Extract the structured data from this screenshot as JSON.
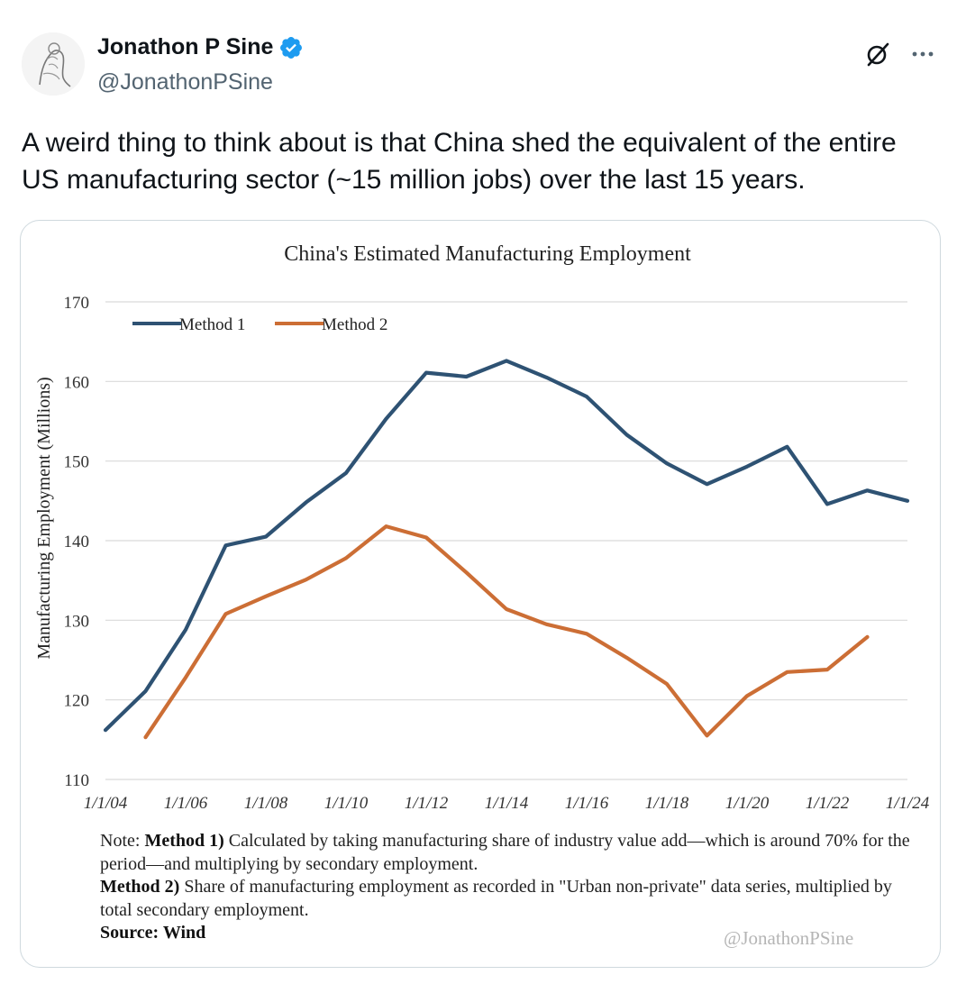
{
  "tweet": {
    "author_name": "Jonathon P Sine",
    "author_handle": "@JonathonPSine",
    "text": "A weird thing to think about is that China shed the equivalent of the entire US manufacturing sector (~15 million jobs) over the last 15 years.",
    "icons": {
      "verified": "verified-badge-icon",
      "grok": "grok-icon",
      "more": "more-options-icon",
      "avatar": "avatar"
    }
  },
  "chart_note": {
    "note_prefix": "Note: ",
    "method1_label": "Method 1)",
    "method1_text": " Calculated by taking manufacturing share of industry value add—which is around 70% for the period—and multiplying by secondary employment.",
    "method2_label": "Method 2)",
    "method2_text": " Share of manufacturing employment as recorded in \"Urban non-private\" data series, multiplied by total secondary employment.",
    "source_label": "Source: Wind",
    "watermark": "@JonathonPSine"
  },
  "chart_data": {
    "type": "line",
    "title": "China's Estimated Manufacturing Employment",
    "xlabel": "",
    "ylabel": "Manufacturing Employment (Millions)",
    "ylim": [
      110,
      170
    ],
    "yticks": [
      110,
      120,
      130,
      140,
      150,
      160,
      170
    ],
    "xticks": [
      "1/1/04",
      "1/1/06",
      "1/1/08",
      "1/1/10",
      "1/1/12",
      "1/1/14",
      "1/1/16",
      "1/1/18",
      "1/1/20",
      "1/1/22",
      "1/1/24"
    ],
    "grid": true,
    "legend_placement": "top-left",
    "series": [
      {
        "name": "Method 1",
        "color": "#2e5273",
        "x": [
          "2004",
          "2005",
          "2006",
          "2007",
          "2008",
          "2009",
          "2010",
          "2011",
          "2012",
          "2013",
          "2014",
          "2015",
          "2016",
          "2017",
          "2018",
          "2019",
          "2020",
          "2021",
          "2022",
          "2023",
          "2024"
        ],
        "values": [
          116.2,
          121.1,
          128.8,
          139.4,
          140.5,
          144.8,
          148.5,
          155.3,
          161.1,
          160.6,
          162.6,
          160.5,
          158.1,
          153.3,
          149.7,
          147.1,
          149.3,
          151.8,
          144.6,
          146.3,
          145.0
        ]
      },
      {
        "name": "Method 2",
        "color": "#cc6e35",
        "x": [
          "2005",
          "2006",
          "2007",
          "2008",
          "2009",
          "2010",
          "2011",
          "2012",
          "2013",
          "2014",
          "2015",
          "2016",
          "2017",
          "2018",
          "2019",
          "2020",
          "2021",
          "2022",
          "2023"
        ],
        "values": [
          115.3,
          122.8,
          130.8,
          133.0,
          135.1,
          137.8,
          141.8,
          140.4,
          136.0,
          131.4,
          129.5,
          128.3,
          125.3,
          122.0,
          115.5,
          120.5,
          123.5,
          123.8,
          127.9
        ]
      }
    ]
  }
}
